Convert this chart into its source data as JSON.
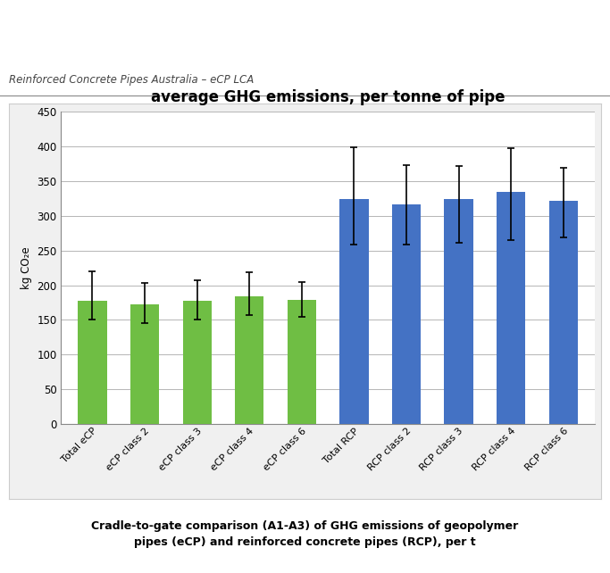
{
  "title": "average GHG emissions, per tonne of pipe",
  "ylabel": "kg CO₂e",
  "categories": [
    "Total eCP",
    "eCP class 2",
    "eCP class 3",
    "eCP class 4",
    "eCP class 6",
    "Total RCP",
    "RCP class 2",
    "RCP class 3",
    "RCP class 4",
    "RCP class 6"
  ],
  "values": [
    178,
    173,
    177,
    184,
    179,
    324,
    316,
    324,
    335,
    322
  ],
  "errors_lower": [
    28,
    28,
    27,
    27,
    25,
    65,
    57,
    63,
    70,
    53
  ],
  "errors_upper": [
    42,
    30,
    30,
    35,
    25,
    75,
    57,
    48,
    63,
    47
  ],
  "bar_colors": [
    "#6fbe44",
    "#6fbe44",
    "#6fbe44",
    "#6fbe44",
    "#6fbe44",
    "#4472c4",
    "#4472c4",
    "#4472c4",
    "#4472c4",
    "#4472c4"
  ],
  "ylim": [
    0,
    450
  ],
  "yticks": [
    0,
    50,
    100,
    150,
    200,
    250,
    300,
    350,
    400,
    450
  ],
  "plot_bg": "#ffffff",
  "outer_bg": "#f2f2f2",
  "caption": "Cradle-to-gate comparison (A1-A3) of GHG emissions of geopolymer\npipes (eCP) and reinforced concrete pipes (RCP), per t",
  "header_text": "Reinforced Concrete Pipes Australia – eCP LCA",
  "grid_color": "#aaaaaa",
  "error_cap_size": 3,
  "bar_width": 0.55
}
